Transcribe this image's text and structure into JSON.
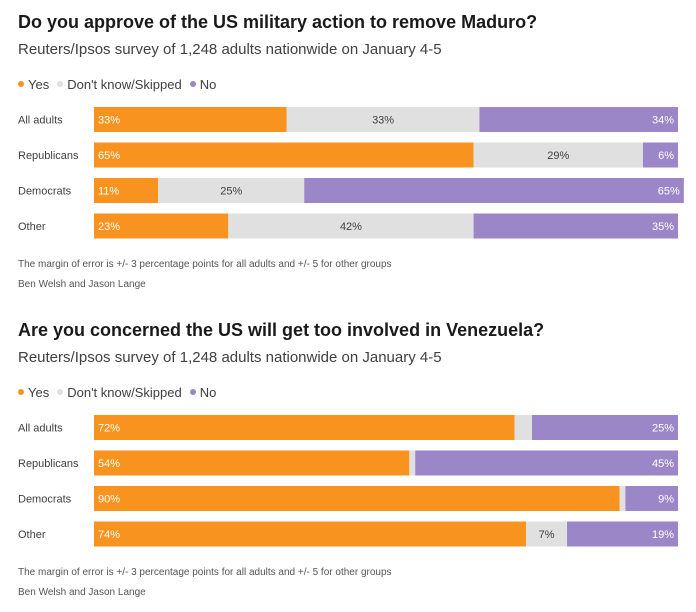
{
  "colors": {
    "yes": "#f7931e",
    "dont_know": "#e0e0e0",
    "no": "#9b86c8"
  },
  "chart_data": [
    {
      "type": "bar",
      "stacked": true,
      "orientation": "horizontal",
      "title": "Do you approve of the US military action to remove Maduro?",
      "subtitle": "Reuters/Ipsos survey of 1,248 adults nationwide on January 4-5",
      "categories": [
        "All adults",
        "Republicans",
        "Democrats",
        "Other"
      ],
      "series": [
        {
          "name": "Yes",
          "values": [
            33,
            65,
            11,
            23
          ]
        },
        {
          "name": "Don't know/Skipped",
          "values": [
            33,
            29,
            25,
            42
          ]
        },
        {
          "name": "No",
          "values": [
            34,
            6,
            65,
            35
          ]
        }
      ],
      "legend_placement": "top-left",
      "note": "The margin of error is +/- 3 percentage points for all adults and +/- 5 for other groups",
      "byline": "Ben Welsh and Jason Lange"
    },
    {
      "type": "bar",
      "stacked": true,
      "orientation": "horizontal",
      "title": "Are you concerned the US will get too involved in Venezuela?",
      "subtitle": "Reuters/Ipsos survey of 1,248 adults nationwide on January 4-5",
      "categories": [
        "All adults",
        "Republicans",
        "Democrats",
        "Other"
      ],
      "series": [
        {
          "name": "Yes",
          "values": [
            72,
            54,
            90,
            74
          ]
        },
        {
          "name": "Don't know/Skipped",
          "values": [
            3,
            1,
            1,
            7
          ]
        },
        {
          "name": "No",
          "values": [
            25,
            45,
            9,
            19
          ]
        }
      ],
      "legend_placement": "top-left",
      "note": "The margin of error is +/- 3 percentage points for all adults and +/- 5 for other groups",
      "byline": "Ben Welsh and Jason Lange"
    }
  ]
}
